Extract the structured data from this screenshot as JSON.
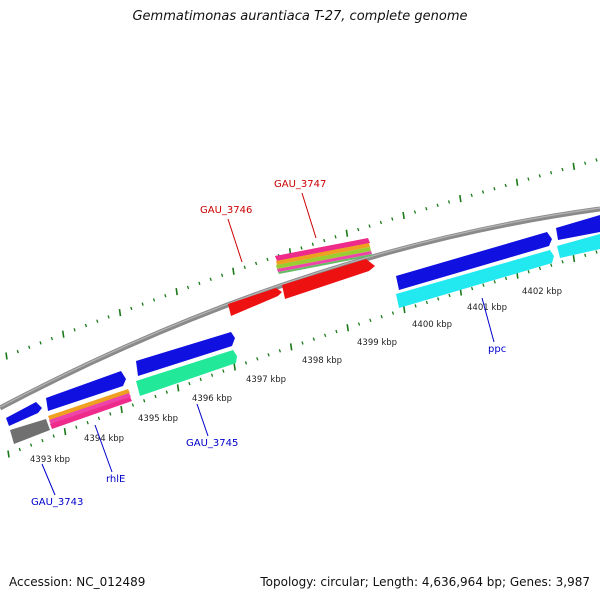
{
  "title": "Gemmatimonas aurantiaca T-27, complete genome",
  "footer": {
    "accession": "Accession: NC_012489",
    "summary": "Topology: circular; Length: 4,636,964 bp; Genes: 3,987"
  },
  "colors": {
    "tick": "#1a7a1a",
    "backbone": "#808080",
    "forward_label": "#cc0000",
    "reverse_label": "#0000cc",
    "cds_blue": "#1010e0",
    "cds_red": "#ee1111",
    "cds_cyan": "#22e8f0",
    "cds_green": "#22e89a",
    "cds_grey": "#707070",
    "rna_stripes": [
      "#ee2a8a",
      "#f0a020",
      "#9acd32",
      "#ee44aa",
      "#66bb66"
    ]
  },
  "scale_labels": [
    "4393 kbp",
    "4394 kbp",
    "4395 kbp",
    "4396 kbp",
    "4397 kbp",
    "4398 kbp",
    "4399 kbp",
    "4400 kbp",
    "4401 kbp",
    "4402 kbp"
  ],
  "gene_labels": [
    {
      "text": "GAU_3746",
      "strand": "forward"
    },
    {
      "text": "GAU_3747",
      "strand": "forward"
    },
    {
      "text": "GAU_3743",
      "strand": "reverse"
    },
    {
      "text": "rhlE",
      "strand": "reverse"
    },
    {
      "text": "GAU_3745",
      "strand": "reverse"
    },
    {
      "text": "ppc",
      "strand": "reverse"
    }
  ]
}
